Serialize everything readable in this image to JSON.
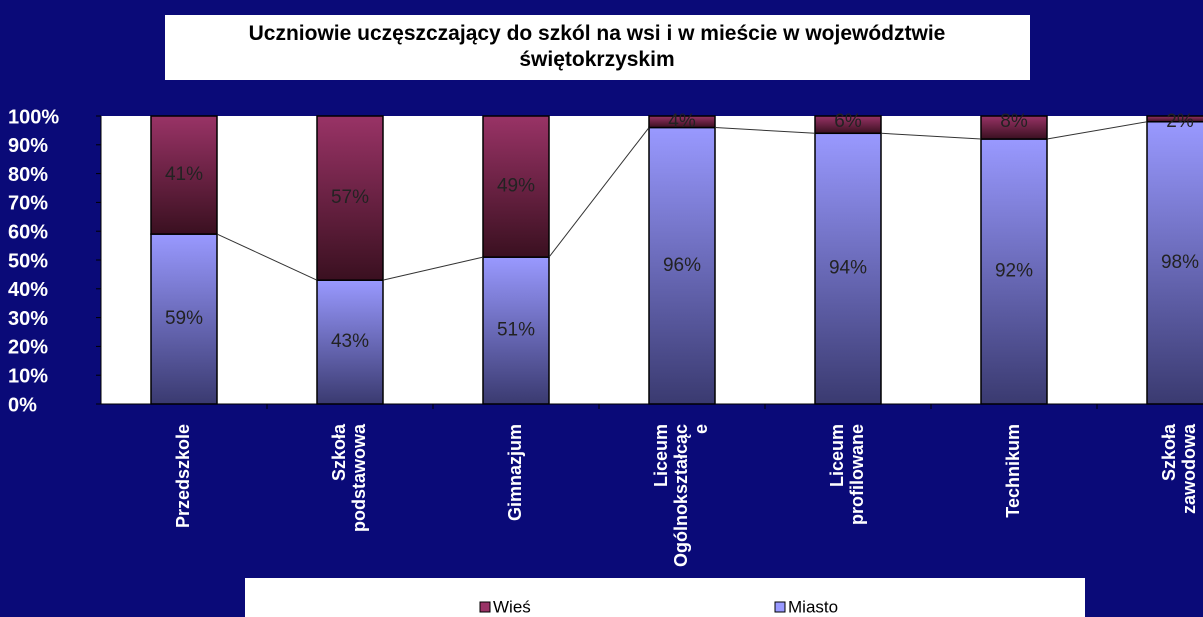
{
  "chart_data": {
    "type": "stacked_bar",
    "title": "Uczniowie uczęszczający do szkól na wsi i w mieście w województwie świętokrzyskim",
    "categories": [
      "Przedszkole",
      "Szkoła podstawowa",
      "Gimnazjum",
      "Liceum Ogólnokształcąc e",
      "Liceum profilowane",
      "Technikum",
      "Szkoła zawodowa"
    ],
    "series": [
      {
        "name": "Miasto",
        "color": "#9999ff",
        "values": [
          59,
          43,
          51,
          96,
          94,
          92,
          98
        ],
        "value_labels": [
          "59%",
          "43%",
          "51%",
          "96%",
          "94%",
          "92%",
          "98%"
        ]
      },
      {
        "name": "Wieś",
        "color": "#993366",
        "values": [
          41,
          57,
          49,
          4,
          6,
          8,
          2
        ],
        "value_labels": [
          "41%",
          "57%",
          "49%",
          "4%",
          "6%",
          "8%",
          "2%"
        ]
      }
    ],
    "ylim": [
      0,
      100
    ],
    "yticks": [
      {
        "value": 0,
        "label": "0%"
      },
      {
        "value": 10,
        "label": "10%"
      },
      {
        "value": 20,
        "label": "20%"
      },
      {
        "value": 30,
        "label": "30%"
      },
      {
        "value": 40,
        "label": "40%"
      },
      {
        "value": 50,
        "label": "50%"
      },
      {
        "value": 60,
        "label": "60%"
      },
      {
        "value": 70,
        "label": "70%"
      },
      {
        "value": 80,
        "label": "80%"
      },
      {
        "value": 90,
        "label": "90%"
      },
      {
        "value": 100,
        "label": "100%"
      }
    ],
    "legend_order": [
      "Wieś",
      "Miasto"
    ]
  }
}
